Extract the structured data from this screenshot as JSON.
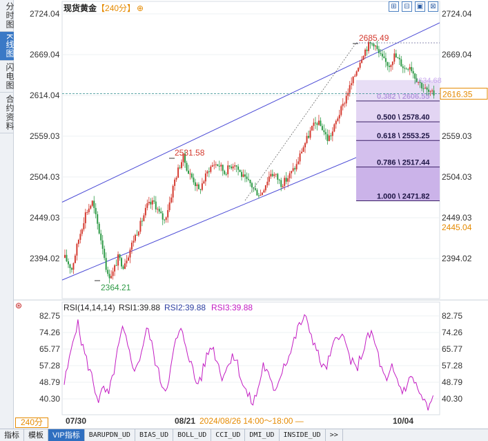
{
  "side_tabs": [
    "分时图",
    "K线图",
    "闪电图",
    "合约资料"
  ],
  "title": {
    "name": "现货黄金",
    "period": "【240分】",
    "add_symbol": "⊕"
  },
  "tools": [
    "zoom-in",
    "zoom-out",
    "fit",
    "close"
  ],
  "tool_glyphs": [
    "⊞",
    "⊟",
    "▣",
    "⊠"
  ],
  "price_axis": [
    "2724.04",
    "2669.04",
    "2614.04",
    "2559.03",
    "2504.03",
    "2449.03",
    "2394.02"
  ],
  "price_tags": {
    "current": "2616.35",
    "cursor": "2445.04"
  },
  "annotations": {
    "high": "2685.49",
    "mid_high": "2531.58",
    "low": "2364.21",
    "hidden_fib": "2634.68"
  },
  "fibonacci": [
    {
      "label": "0.382 \\ 2606.55",
      "price": 2606.55
    },
    {
      "label": "0.500 \\ 2578.40",
      "price": 2578.4
    },
    {
      "label": "0.618 \\ 2553.25",
      "price": 2553.25
    },
    {
      "label": "0.786 \\ 2517.44",
      "price": 2517.44
    },
    {
      "label": "1.000 \\ 2471.82",
      "price": 2471.82
    }
  ],
  "rsi": {
    "header": "RSI(14,14,14)",
    "rsi1": "RSI1:39.88",
    "rsi2": "RSI2:39.88",
    "rsi3": "RSI3:39.88",
    "axis": [
      "82.75",
      "74.26",
      "65.77",
      "57.28",
      "48.79",
      "40.30"
    ]
  },
  "time_axis": {
    "start": "07/30",
    "mid": "08/21",
    "cursor_time": "2024/08/26 14:00～18:00 —",
    "end": "10/04"
  },
  "period_badge": "240分 ▲",
  "bottom_tabs": [
    "指标",
    "模板",
    "VIP指标",
    "BARUPDN_UD",
    "BIAS_UD",
    "BOLL_UD",
    "CCI_UD",
    "DMI_UD",
    "INSIDE_UD",
    ">>"
  ],
  "active_bottom_tab": 2,
  "colors": {
    "up": "#d43a2f",
    "down": "#2e9a46",
    "channel": "#4b4bd6",
    "rsi": "#c21ac2",
    "fib_fill": "#8e5fd0",
    "accent": "#e58a00"
  },
  "chart_data": {
    "type": "candlestick",
    "symbol": "现货黄金",
    "period": "240分",
    "price_ylim": [
      2364.21,
      2724.04
    ],
    "price_ticks": [
      2724.04,
      2669.04,
      2614.04,
      2559.03,
      2504.03,
      2449.03,
      2394.02
    ],
    "swing_points": {
      "high": 2685.49,
      "mid_high": 2531.58,
      "low": 2364.21
    },
    "price_path": [
      [
        0,
        2395
      ],
      [
        4,
        2380
      ],
      [
        8,
        2420
      ],
      [
        12,
        2455
      ],
      [
        16,
        2470
      ],
      [
        19,
        2440
      ],
      [
        22,
        2410
      ],
      [
        25,
        2370
      ],
      [
        28,
        2375
      ],
      [
        31,
        2395
      ],
      [
        34,
        2385
      ],
      [
        37,
        2400
      ],
      [
        40,
        2420
      ],
      [
        44,
        2440
      ],
      [
        48,
        2465
      ],
      [
        52,
        2470
      ],
      [
        55,
        2455
      ],
      [
        58,
        2445
      ],
      [
        61,
        2470
      ],
      [
        64,
        2500
      ],
      [
        67,
        2520
      ],
      [
        69,
        2531
      ],
      [
        72,
        2510
      ],
      [
        75,
        2500
      ],
      [
        78,
        2485
      ],
      [
        81,
        2500
      ],
      [
        84,
        2515
      ],
      [
        87,
        2522
      ],
      [
        90,
        2520
      ],
      [
        93,
        2510
      ],
      [
        96,
        2518
      ],
      [
        99,
        2523
      ],
      [
        102,
        2510
      ],
      [
        105,
        2500
      ],
      [
        108,
        2495
      ],
      [
        111,
        2485
      ],
      [
        114,
        2480
      ],
      [
        117,
        2495
      ],
      [
        120,
        2510
      ],
      [
        123,
        2505
      ],
      [
        126,
        2495
      ],
      [
        129,
        2500
      ],
      [
        132,
        2510
      ],
      [
        135,
        2520
      ],
      [
        138,
        2540
      ],
      [
        141,
        2555
      ],
      [
        144,
        2570
      ],
      [
        147,
        2578
      ],
      [
        150,
        2570
      ],
      [
        153,
        2555
      ],
      [
        156,
        2565
      ],
      [
        159,
        2585
      ],
      [
        162,
        2600
      ],
      [
        165,
        2620
      ],
      [
        168,
        2635
      ],
      [
        171,
        2655
      ],
      [
        174,
        2672
      ],
      [
        177,
        2682
      ],
      [
        180,
        2685
      ],
      [
        183,
        2670
      ],
      [
        186,
        2660
      ],
      [
        189,
        2655
      ],
      [
        192,
        2668
      ],
      [
        195,
        2660
      ],
      [
        198,
        2650
      ],
      [
        201,
        2655
      ],
      [
        204,
        2640
      ],
      [
        207,
        2630
      ],
      [
        210,
        2622
      ],
      [
        213,
        2616
      ]
    ],
    "fibonacci_levels": [
      {
        "ratio": 0.382,
        "price": 2606.55
      },
      {
        "ratio": 0.5,
        "price": 2578.4
      },
      {
        "ratio": 0.618,
        "price": 2553.25
      },
      {
        "ratio": 0.786,
        "price": 2517.44
      },
      {
        "ratio": 1.0,
        "price": 2471.82
      }
    ],
    "rsi_ylim": [
      35,
      85
    ],
    "rsi_ticks": [
      82.75,
      74.26,
      65.77,
      57.28,
      48.79,
      40.3
    ],
    "rsi_last": 39.88,
    "rsi_path": [
      [
        0,
        48
      ],
      [
        3,
        60
      ],
      [
        6,
        75
      ],
      [
        8,
        78
      ],
      [
        10,
        70
      ],
      [
        13,
        60
      ],
      [
        16,
        52
      ],
      [
        18,
        45
      ],
      [
        20,
        40
      ],
      [
        23,
        45
      ],
      [
        26,
        42
      ],
      [
        29,
        55
      ],
      [
        32,
        68
      ],
      [
        34,
        76
      ],
      [
        36,
        70
      ],
      [
        39,
        60
      ],
      [
        42,
        55
      ],
      [
        45,
        65
      ],
      [
        48,
        76
      ],
      [
        50,
        72
      ],
      [
        53,
        60
      ],
      [
        56,
        50
      ],
      [
        59,
        45
      ],
      [
        62,
        55
      ],
      [
        65,
        70
      ],
      [
        68,
        75
      ],
      [
        71,
        68
      ],
      [
        74,
        58
      ],
      [
        77,
        48
      ],
      [
        80,
        52
      ],
      [
        83,
        62
      ],
      [
        86,
        68
      ],
      [
        89,
        60
      ],
      [
        92,
        52
      ],
      [
        95,
        56
      ],
      [
        98,
        64
      ],
      [
        101,
        58
      ],
      [
        104,
        48
      ],
      [
        107,
        42
      ],
      [
        110,
        38
      ],
      [
        113,
        45
      ],
      [
        116,
        58
      ],
      [
        119,
        52
      ],
      [
        122,
        44
      ],
      [
        125,
        50
      ],
      [
        128,
        58
      ],
      [
        131,
        62
      ],
      [
        134,
        70
      ],
      [
        137,
        78
      ],
      [
        140,
        82
      ],
      [
        143,
        76
      ],
      [
        146,
        68
      ],
      [
        149,
        60
      ],
      [
        152,
        55
      ],
      [
        155,
        62
      ],
      [
        158,
        70
      ],
      [
        161,
        75
      ],
      [
        164,
        68
      ],
      [
        167,
        60
      ],
      [
        170,
        55
      ],
      [
        173,
        62
      ],
      [
        176,
        70
      ],
      [
        179,
        74
      ],
      [
        182,
        66
      ],
      [
        185,
        55
      ],
      [
        188,
        48
      ],
      [
        191,
        56
      ],
      [
        194,
        50
      ],
      [
        197,
        44
      ],
      [
        200,
        48
      ],
      [
        203,
        52
      ],
      [
        206,
        45
      ],
      [
        209,
        40
      ],
      [
        212,
        35
      ],
      [
        215,
        40
      ]
    ],
    "x_labels": [
      "07/30",
      "08/21",
      "10/04"
    ]
  }
}
